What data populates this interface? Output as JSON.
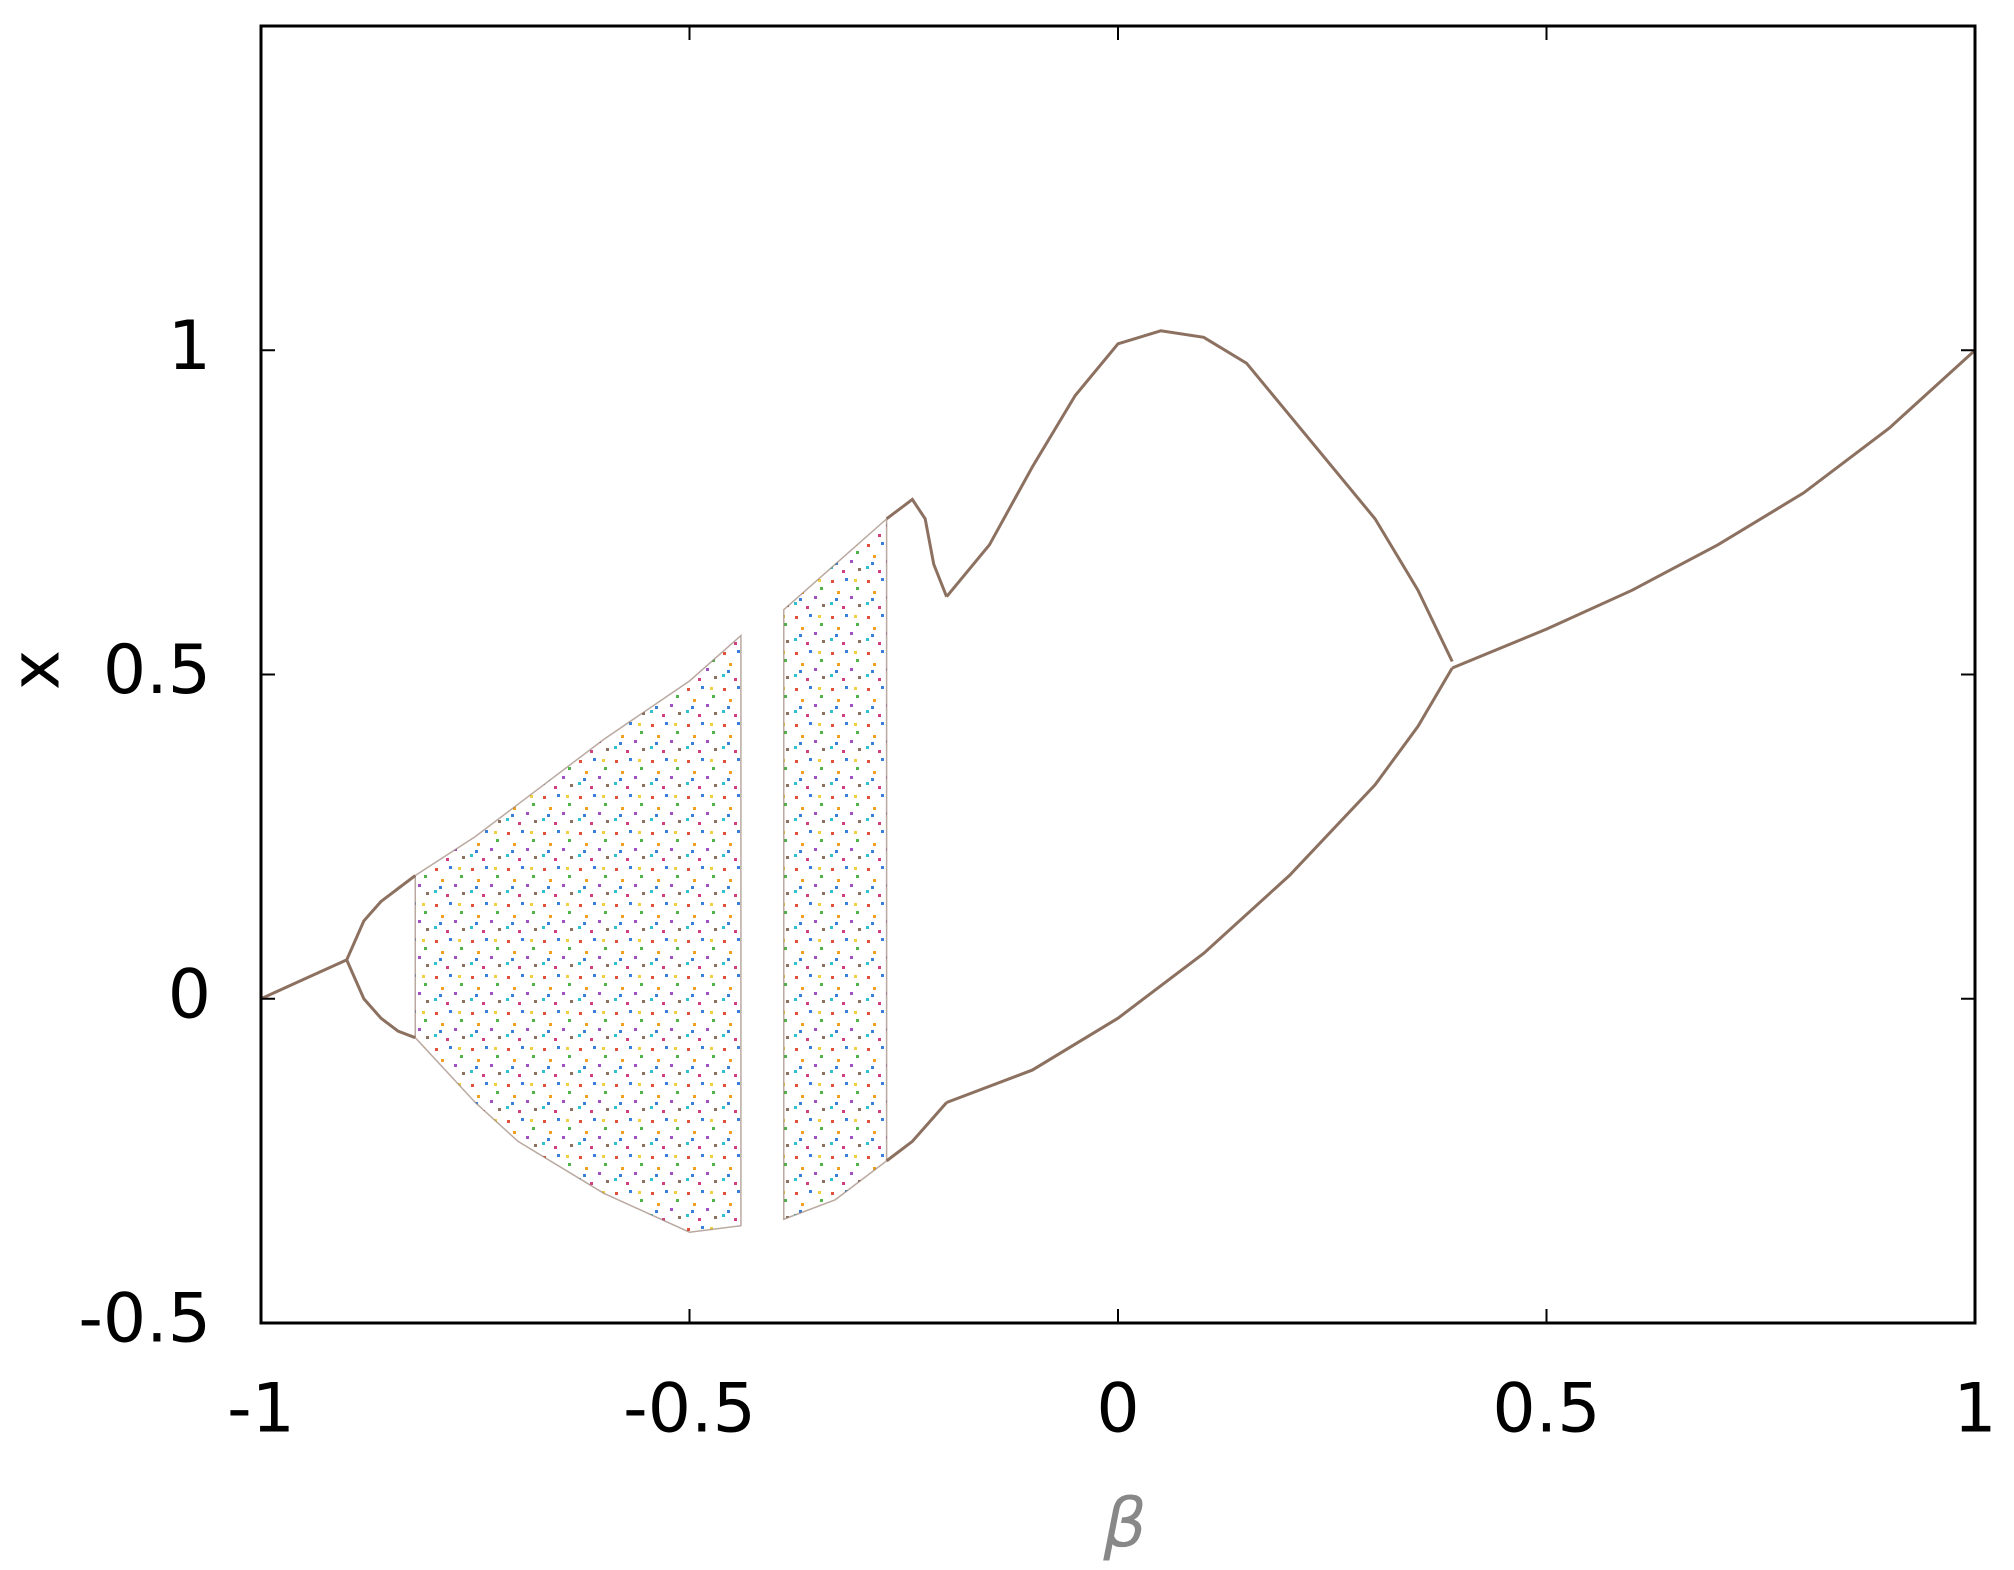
{
  "chart_data": {
    "type": "line",
    "x_label": "β",
    "y_label": "x",
    "xlim": [
      -1,
      1
    ],
    "ylim": [
      -0.5,
      1.5
    ],
    "xticks": [
      -1,
      -0.5,
      0,
      0.5,
      1
    ],
    "yticks": [
      -0.5,
      0,
      0.5,
      1
    ],
    "color": "#8c7060",
    "series": [
      {
        "x": [
          -1,
          -0.95,
          -0.9
        ],
        "values": [
          0,
          0.03,
          0.06
        ]
      },
      {
        "x": [
          -0.9,
          -0.88,
          -0.86,
          -0.84,
          -0.82
        ],
        "values": [
          0.06,
          0.12,
          0.15,
          0.17,
          0.19
        ]
      },
      {
        "x": [
          -0.9,
          -0.88,
          -0.86,
          -0.84,
          -0.82
        ],
        "values": [
          0.06,
          0.0,
          -0.03,
          -0.05,
          -0.06
        ]
      },
      {
        "x": [
          -0.27,
          -0.25,
          -0.24,
          -0.225,
          -0.215,
          -0.2
        ],
        "values": [
          0.74,
          0.76,
          0.77,
          0.74,
          0.67,
          0.62
        ]
      },
      {
        "x": [
          -0.27,
          -0.24,
          -0.22,
          -0.2
        ],
        "values": [
          -0.25,
          -0.22,
          -0.19,
          -0.16
        ]
      },
      {
        "x": [
          -0.2,
          -0.15,
          -0.1,
          -0.05,
          0,
          0.05,
          0.1,
          0.15,
          0.2,
          0.25,
          0.3,
          0.35,
          0.39
        ],
        "values": [
          0.62,
          0.7,
          0.82,
          0.93,
          1.01,
          1.03,
          1.02,
          0.98,
          0.9,
          0.82,
          0.74,
          0.63,
          0.52
        ]
      },
      {
        "x": [
          -0.2,
          -0.1,
          0,
          0.1,
          0.2,
          0.3,
          0.35,
          0.39
        ],
        "values": [
          -0.16,
          -0.11,
          -0.03,
          0.07,
          0.19,
          0.33,
          0.42,
          0.51
        ]
      },
      {
        "x": [
          0.39,
          0.5,
          0.6,
          0.7,
          0.8,
          0.9,
          1
        ],
        "values": [
          0.51,
          0.57,
          0.63,
          0.7,
          0.78,
          0.88,
          1.0
        ]
      }
    ],
    "bands": [
      {
        "x": [
          -0.82,
          -0.75,
          -0.7,
          -0.6,
          -0.5,
          -0.44
        ],
        "upper": [
          0.19,
          0.25,
          0.3,
          0.4,
          0.49,
          0.56
        ],
        "lower": [
          -0.06,
          -0.16,
          -0.22,
          -0.3,
          -0.36,
          -0.35
        ]
      },
      {
        "x": [
          -0.39,
          -0.33,
          -0.27
        ],
        "upper": [
          0.6,
          0.67,
          0.74
        ],
        "lower": [
          -0.34,
          -0.31,
          -0.25
        ]
      }
    ]
  }
}
